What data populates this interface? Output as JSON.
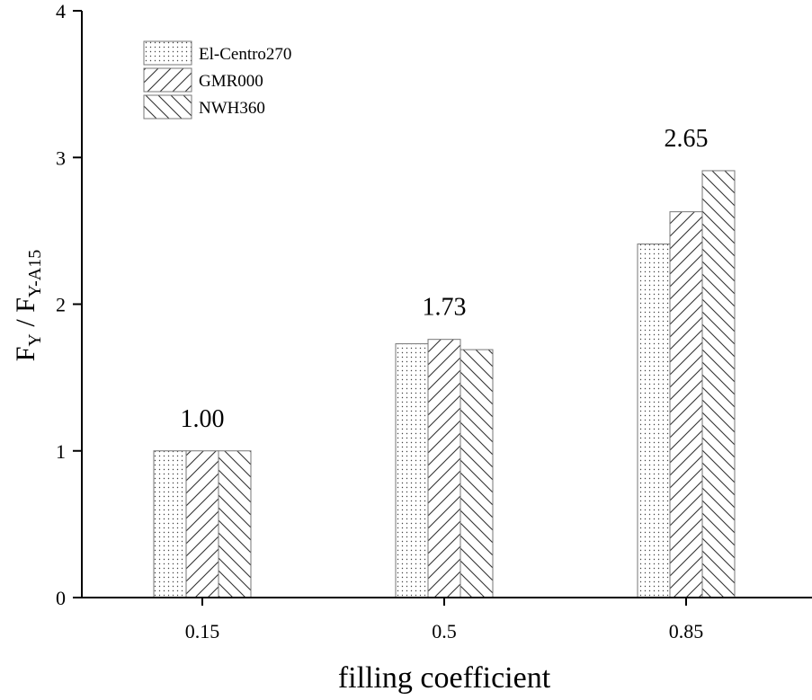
{
  "chart_data": {
    "type": "bar",
    "categories": [
      "0.15",
      "0.5",
      "0.85"
    ],
    "series": [
      {
        "name": "El-Centro270",
        "pattern": "dots",
        "values": [
          1.0,
          1.73,
          2.41
        ]
      },
      {
        "name": "GMR000",
        "pattern": "hatch-forward",
        "values": [
          1.0,
          1.76,
          2.63
        ]
      },
      {
        "name": "NWH360",
        "pattern": "hatch-back",
        "values": [
          1.0,
          1.69,
          2.91
        ]
      }
    ],
    "annotations": [
      "1.00",
      "1.73",
      "2.65"
    ],
    "xlabel": "filling coefficient",
    "ylabel": {
      "main1": "F",
      "sub1": "Y",
      "sep": " / ",
      "main2": "F",
      "sub2": "Y-A15"
    },
    "ylim": [
      0,
      4
    ],
    "yticks": [
      "0",
      "1",
      "2",
      "3",
      "4"
    ],
    "legend_position": "top-left",
    "grid": false,
    "colors": {
      "axis": "#000000",
      "bar_stroke": "#555555",
      "pattern": "#333333",
      "background": "#ffffff"
    }
  }
}
